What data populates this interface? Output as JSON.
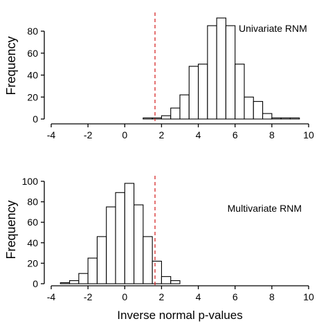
{
  "chart_data": [
    {
      "type": "bar",
      "subtype": "histogram",
      "annotation": "Univariate RNM",
      "xlabel": "",
      "ylabel": "Frequency",
      "xlim": [
        -4,
        10
      ],
      "ylim": [
        0,
        92
      ],
      "xticks": [
        -4,
        -2,
        0,
        2,
        4,
        6,
        8,
        10
      ],
      "yticks": [
        0,
        20,
        40,
        60,
        80
      ],
      "reference_line": {
        "x": 1.645,
        "style": "dashed",
        "color": "#d62728"
      },
      "bin_width": 0.5,
      "bins": [
        {
          "x0": 1.0,
          "count": 1
        },
        {
          "x0": 1.5,
          "count": 1
        },
        {
          "x0": 2.0,
          "count": 3
        },
        {
          "x0": 2.5,
          "count": 10
        },
        {
          "x0": 3.0,
          "count": 22
        },
        {
          "x0": 3.5,
          "count": 48
        },
        {
          "x0": 4.0,
          "count": 50
        },
        {
          "x0": 4.5,
          "count": 85
        },
        {
          "x0": 5.0,
          "count": 92
        },
        {
          "x0": 5.5,
          "count": 85
        },
        {
          "x0": 6.0,
          "count": 50
        },
        {
          "x0": 6.5,
          "count": 20
        },
        {
          "x0": 7.0,
          "count": 16
        },
        {
          "x0": 7.5,
          "count": 5
        },
        {
          "x0": 8.0,
          "count": 1
        },
        {
          "x0": 8.5,
          "count": 1
        },
        {
          "x0": 9.0,
          "count": 1
        }
      ]
    },
    {
      "type": "bar",
      "subtype": "histogram",
      "annotation": "Multivariate RNM",
      "xlabel": "Inverse normal p-values",
      "ylabel": "Frequency",
      "xlim": [
        -4,
        10
      ],
      "ylim": [
        0,
        100
      ],
      "xticks": [
        -4,
        -2,
        0,
        2,
        4,
        6,
        8,
        10
      ],
      "yticks": [
        0,
        20,
        40,
        60,
        80,
        100
      ],
      "reference_line": {
        "x": 1.645,
        "style": "dashed",
        "color": "#d62728"
      },
      "bin_width": 0.5,
      "bins": [
        {
          "x0": -3.5,
          "count": 1
        },
        {
          "x0": -3.0,
          "count": 3
        },
        {
          "x0": -2.5,
          "count": 10
        },
        {
          "x0": -2.0,
          "count": 25
        },
        {
          "x0": -1.5,
          "count": 46
        },
        {
          "x0": -1.0,
          "count": 75
        },
        {
          "x0": -0.5,
          "count": 89
        },
        {
          "x0": 0.0,
          "count": 98
        },
        {
          "x0": 0.5,
          "count": 77
        },
        {
          "x0": 1.0,
          "count": 46
        },
        {
          "x0": 1.5,
          "count": 22
        },
        {
          "x0": 2.0,
          "count": 7
        },
        {
          "x0": 2.5,
          "count": 3
        }
      ]
    }
  ]
}
